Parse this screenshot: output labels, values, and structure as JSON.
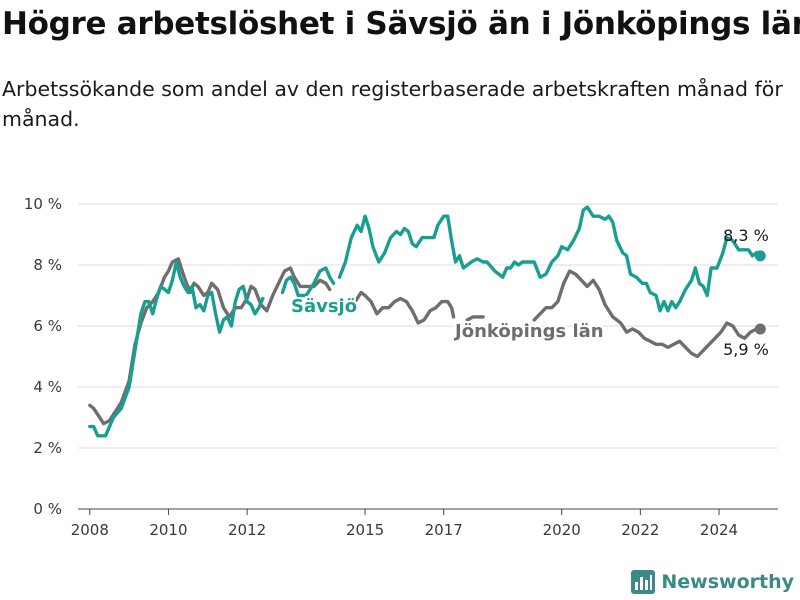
{
  "header": {
    "title": "Högre arbetslöshet i Sävsjö än i Jönköpings län",
    "subtitle": "Arbetssökande som andel av den registerbaserade arbetskraften månad för månad."
  },
  "brand": {
    "name": "Newsworthy",
    "icon": "bar-chart-icon"
  },
  "colors": {
    "savsjo": "#1a9e92",
    "lan": "#6e6e6e",
    "grid": "#dcdcdc"
  },
  "chart_data": {
    "type": "line",
    "title": "Högre arbetslöshet i Sävsjö än i Jönköpings län",
    "subtitle": "Arbetssökande som andel av den registerbaserade arbetskraften månad för månad.",
    "xlabel": "",
    "ylabel": "",
    "ylim": [
      0,
      10
    ],
    "xlim": [
      2007.7,
      2025.5
    ],
    "grid": true,
    "legend": "inline labels",
    "y_ticks": [
      0,
      2,
      4,
      6,
      8,
      10
    ],
    "y_tick_labels": [
      "0 %",
      "2 %",
      "4 %",
      "6 %",
      "8 %",
      "10 %"
    ],
    "x_ticks": [
      2008,
      2010,
      2012,
      2015,
      2017,
      2020,
      2022,
      2024
    ],
    "x_tick_labels": [
      "2008",
      "2010",
      "2012",
      "2015",
      "2017",
      "2020",
      "2022",
      "2024"
    ],
    "series": [
      {
        "name": "Sävsjö",
        "end_label": "8,3 %",
        "points": [
          [
            2008.0,
            2.7
          ],
          [
            2008.1,
            2.7
          ],
          [
            2008.2,
            2.4
          ],
          [
            2008.3,
            2.4
          ],
          [
            2008.4,
            2.4
          ],
          [
            2008.5,
            2.7
          ],
          [
            2008.6,
            3.0
          ],
          [
            2008.8,
            3.3
          ],
          [
            2009.0,
            4.0
          ],
          [
            2009.15,
            5.2
          ],
          [
            2009.3,
            6.4
          ],
          [
            2009.4,
            6.8
          ],
          [
            2009.5,
            6.8
          ],
          [
            2009.6,
            6.4
          ],
          [
            2009.7,
            6.9
          ],
          [
            2009.8,
            7.3
          ],
          [
            2009.9,
            7.2
          ],
          [
            2010.0,
            7.1
          ],
          [
            2010.1,
            7.5
          ],
          [
            2010.2,
            8.1
          ],
          [
            2010.3,
            7.6
          ],
          [
            2010.4,
            7.3
          ],
          [
            2010.5,
            7.1
          ],
          [
            2010.6,
            7.3
          ],
          [
            2010.7,
            6.6
          ],
          [
            2010.8,
            6.7
          ],
          [
            2010.9,
            6.5
          ],
          [
            2011.0,
            7.0
          ],
          [
            2011.1,
            7.1
          ],
          [
            2011.2,
            6.4
          ],
          [
            2011.3,
            5.8
          ],
          [
            2011.4,
            6.2
          ],
          [
            2011.5,
            6.3
          ],
          [
            2011.6,
            6.0
          ],
          [
            2011.7,
            6.8
          ],
          [
            2011.8,
            7.2
          ],
          [
            2011.9,
            7.3
          ],
          [
            2012.0,
            6.8
          ],
          [
            2012.1,
            6.7
          ],
          [
            2012.2,
            6.4
          ],
          [
            2012.3,
            6.6
          ],
          [
            2012.4,
            6.9
          ],
          null,
          [
            2012.9,
            7.1
          ],
          [
            2013.0,
            7.5
          ],
          [
            2013.1,
            7.6
          ],
          [
            2013.2,
            7.4
          ],
          [
            2013.3,
            7.0
          ],
          [
            2013.5,
            7.0
          ],
          [
            2013.7,
            7.4
          ],
          [
            2013.85,
            7.8
          ],
          [
            2014.0,
            7.9
          ],
          [
            2014.1,
            7.6
          ],
          [
            2014.2,
            7.4
          ],
          null,
          [
            2014.35,
            7.6
          ],
          [
            2014.5,
            8.1
          ],
          [
            2014.65,
            8.9
          ],
          [
            2014.8,
            9.3
          ],
          [
            2014.9,
            9.1
          ],
          [
            2015.0,
            9.6
          ],
          [
            2015.1,
            9.2
          ],
          [
            2015.2,
            8.6
          ],
          [
            2015.35,
            8.1
          ],
          [
            2015.5,
            8.4
          ],
          [
            2015.65,
            8.9
          ],
          [
            2015.8,
            9.1
          ],
          [
            2015.9,
            9.0
          ],
          [
            2016.0,
            9.2
          ],
          [
            2016.1,
            9.1
          ],
          [
            2016.2,
            8.7
          ],
          [
            2016.3,
            8.6
          ],
          [
            2016.45,
            8.9
          ],
          [
            2016.6,
            8.9
          ],
          [
            2016.75,
            8.9
          ],
          [
            2016.85,
            9.3
          ],
          [
            2017.0,
            9.6
          ],
          [
            2017.1,
            9.6
          ],
          [
            2017.2,
            8.8
          ],
          [
            2017.3,
            8.1
          ],
          [
            2017.4,
            8.3
          ],
          [
            2017.5,
            7.9
          ],
          [
            2017.7,
            8.1
          ],
          [
            2017.85,
            8.2
          ],
          [
            2018.0,
            8.1
          ],
          [
            2018.1,
            8.1
          ],
          [
            2018.3,
            7.8
          ],
          [
            2018.5,
            7.6
          ],
          [
            2018.6,
            7.9
          ],
          [
            2018.7,
            7.9
          ],
          [
            2018.8,
            8.1
          ],
          [
            2018.9,
            8.0
          ],
          [
            2019.0,
            8.1
          ],
          [
            2019.3,
            8.1
          ],
          [
            2019.45,
            7.6
          ],
          [
            2019.6,
            7.7
          ],
          [
            2019.75,
            8.1
          ],
          [
            2019.9,
            8.3
          ],
          [
            2020.0,
            8.6
          ],
          [
            2020.15,
            8.5
          ],
          [
            2020.3,
            8.8
          ],
          [
            2020.45,
            9.2
          ],
          [
            2020.55,
            9.8
          ],
          [
            2020.65,
            9.9
          ],
          [
            2020.8,
            9.6
          ],
          [
            2020.95,
            9.6
          ],
          [
            2021.1,
            9.5
          ],
          [
            2021.2,
            9.6
          ],
          [
            2021.3,
            9.4
          ],
          [
            2021.4,
            8.8
          ],
          [
            2021.55,
            8.4
          ],
          [
            2021.65,
            8.3
          ],
          [
            2021.75,
            7.7
          ],
          [
            2021.9,
            7.6
          ],
          [
            2022.05,
            7.4
          ],
          [
            2022.15,
            7.4
          ],
          [
            2022.25,
            7.1
          ],
          [
            2022.4,
            7.0
          ],
          [
            2022.5,
            6.5
          ],
          [
            2022.6,
            6.8
          ],
          [
            2022.7,
            6.5
          ],
          [
            2022.8,
            6.8
          ],
          [
            2022.9,
            6.6
          ],
          [
            2023.0,
            6.8
          ],
          [
            2023.15,
            7.2
          ],
          [
            2023.3,
            7.5
          ],
          [
            2023.4,
            7.9
          ],
          [
            2023.5,
            7.4
          ],
          [
            2023.6,
            7.3
          ],
          [
            2023.7,
            7.0
          ],
          [
            2023.8,
            7.9
          ],
          [
            2023.95,
            7.9
          ],
          [
            2024.1,
            8.4
          ],
          [
            2024.2,
            8.9
          ],
          [
            2024.35,
            8.8
          ],
          [
            2024.5,
            8.5
          ],
          [
            2024.65,
            8.5
          ],
          [
            2024.75,
            8.5
          ],
          [
            2024.85,
            8.3
          ],
          [
            2024.95,
            8.4
          ],
          [
            2025.05,
            8.3
          ]
        ]
      },
      {
        "name": "Jönköpings län",
        "end_label": "5,9 %",
        "points": [
          [
            2008.0,
            3.4
          ],
          [
            2008.1,
            3.3
          ],
          [
            2008.2,
            3.1
          ],
          [
            2008.35,
            2.8
          ],
          [
            2008.5,
            2.9
          ],
          [
            2008.65,
            3.2
          ],
          [
            2008.8,
            3.5
          ],
          [
            2009.0,
            4.2
          ],
          [
            2009.15,
            5.4
          ],
          [
            2009.3,
            6.1
          ],
          [
            2009.45,
            6.6
          ],
          [
            2009.6,
            6.8
          ],
          [
            2009.75,
            7.1
          ],
          [
            2009.9,
            7.6
          ],
          [
            2010.0,
            7.8
          ],
          [
            2010.1,
            8.1
          ],
          [
            2010.25,
            8.2
          ],
          [
            2010.4,
            7.6
          ],
          [
            2010.55,
            7.1
          ],
          [
            2010.65,
            7.4
          ],
          [
            2010.75,
            7.3
          ],
          [
            2010.9,
            7.0
          ],
          [
            2011.0,
            7.1
          ],
          [
            2011.1,
            7.4
          ],
          [
            2011.25,
            7.2
          ],
          [
            2011.4,
            6.6
          ],
          [
            2011.55,
            6.3
          ],
          [
            2011.7,
            6.6
          ],
          [
            2011.85,
            6.6
          ],
          [
            2012.0,
            6.9
          ],
          [
            2012.1,
            7.3
          ],
          [
            2012.2,
            7.2
          ],
          [
            2012.35,
            6.7
          ],
          [
            2012.5,
            6.5
          ],
          [
            2012.65,
            7.0
          ],
          [
            2012.8,
            7.4
          ],
          [
            2012.95,
            7.8
          ],
          [
            2013.1,
            7.9
          ],
          [
            2013.2,
            7.6
          ],
          [
            2013.35,
            7.3
          ],
          [
            2013.5,
            7.3
          ],
          [
            2013.7,
            7.3
          ],
          [
            2013.85,
            7.5
          ],
          [
            2014.0,
            7.4
          ],
          [
            2014.1,
            7.2
          ],
          null,
          [
            2014.45,
            6.5
          ],
          [
            2014.6,
            6.7
          ],
          [
            2014.75,
            6.8
          ],
          [
            2014.9,
            7.1
          ],
          [
            2015.0,
            7.0
          ],
          [
            2015.15,
            6.8
          ],
          [
            2015.3,
            6.4
          ],
          [
            2015.45,
            6.6
          ],
          [
            2015.6,
            6.6
          ],
          [
            2015.75,
            6.8
          ],
          [
            2015.9,
            6.9
          ],
          [
            2016.05,
            6.8
          ],
          [
            2016.2,
            6.5
          ],
          [
            2016.35,
            6.1
          ],
          [
            2016.5,
            6.2
          ],
          [
            2016.65,
            6.5
          ],
          [
            2016.8,
            6.6
          ],
          [
            2016.95,
            6.8
          ],
          [
            2017.1,
            6.8
          ],
          [
            2017.2,
            6.6
          ],
          [
            2017.25,
            6.3
          ],
          null,
          [
            2017.6,
            6.2
          ],
          [
            2017.75,
            6.3
          ],
          [
            2017.9,
            6.3
          ],
          [
            2018.0,
            6.3
          ],
          null,
          [
            2019.3,
            6.2
          ],
          [
            2019.45,
            6.4
          ],
          [
            2019.6,
            6.6
          ],
          [
            2019.75,
            6.6
          ],
          [
            2019.9,
            6.8
          ],
          [
            2020.05,
            7.4
          ],
          [
            2020.2,
            7.8
          ],
          [
            2020.35,
            7.7
          ],
          [
            2020.5,
            7.5
          ],
          [
            2020.65,
            7.3
          ],
          [
            2020.8,
            7.5
          ],
          [
            2020.95,
            7.2
          ],
          [
            2021.1,
            6.7
          ],
          [
            2021.3,
            6.3
          ],
          [
            2021.5,
            6.1
          ],
          [
            2021.65,
            5.8
          ],
          [
            2021.8,
            5.9
          ],
          [
            2021.95,
            5.8
          ],
          [
            2022.1,
            5.6
          ],
          [
            2022.25,
            5.5
          ],
          [
            2022.4,
            5.4
          ],
          [
            2022.55,
            5.4
          ],
          [
            2022.7,
            5.3
          ],
          [
            2022.85,
            5.4
          ],
          [
            2023.0,
            5.5
          ],
          [
            2023.15,
            5.3
          ],
          [
            2023.3,
            5.1
          ],
          [
            2023.45,
            5.0
          ],
          [
            2023.6,
            5.2
          ],
          [
            2023.75,
            5.4
          ],
          [
            2023.9,
            5.6
          ],
          [
            2024.05,
            5.8
          ],
          [
            2024.2,
            6.1
          ],
          [
            2024.35,
            6.0
          ],
          [
            2024.5,
            5.7
          ],
          [
            2024.65,
            5.6
          ],
          [
            2024.8,
            5.8
          ],
          [
            2024.95,
            5.9
          ],
          [
            2025.05,
            5.9
          ]
        ]
      }
    ]
  }
}
